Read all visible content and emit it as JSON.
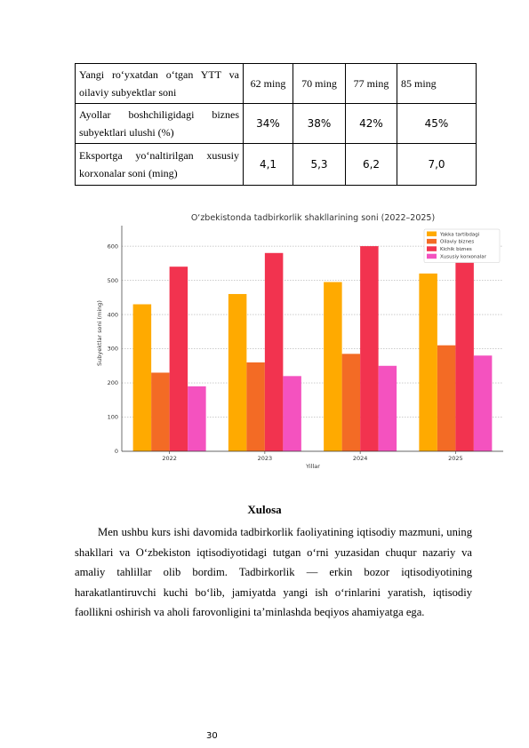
{
  "table": {
    "rows": [
      {
        "label": "Yangi ro‘yxatdan o‘tgan YTT va oilaviy subyektlar soni",
        "values": [
          "62 ming",
          "70 ming",
          "77 ming",
          "85 ming"
        ]
      },
      {
        "label": "Ayollar boshchiligidagi biznes subyektlari ulushi (%)",
        "values": [
          "34%",
          "38%",
          "42%",
          "45%"
        ]
      },
      {
        "label": "Eksportga yo‘naltirilgan xususiy korxonalar soni (ming)",
        "values": [
          "4,1",
          "5,3",
          "6,2",
          "7,0"
        ]
      }
    ]
  },
  "chart_data": {
    "type": "bar",
    "title": "O‘zbekistonda tadbirkorlik shakllarining soni (2022–2025)",
    "xlabel": "Yillar",
    "ylabel": "Subyektlar soni (ming)",
    "categories": [
      "2022",
      "2023",
      "2024",
      "2025"
    ],
    "ylim": [
      0,
      660
    ],
    "yticks": [
      "0",
      "100",
      "200",
      "300",
      "400",
      "500",
      "600"
    ],
    "grid": true,
    "legend_position": "top-right",
    "series": [
      {
        "name": "Yakka tartibdagi",
        "color": "#ffaa00",
        "values": [
          430,
          460,
          495,
          520
        ]
      },
      {
        "name": "Oilaviy biznes",
        "color": "#f36b25",
        "values": [
          230,
          260,
          285,
          310
        ]
      },
      {
        "name": "Kichik biznes",
        "color": "#f2334f",
        "values": [
          540,
          580,
          600,
          620
        ]
      },
      {
        "name": "Xususiy korxonalar",
        "color": "#f452bf",
        "values": [
          190,
          220,
          250,
          280
        ]
      }
    ]
  },
  "conclusion": {
    "heading": "Xulosa",
    "paragraph": "Men ushbu kurs ishi davomida tadbirkorlik faoliyatining iqtisodiy mazmuni, uning shakllari va O‘zbekiston iqtisodiyotidagi tutgan o‘rni yuzasidan chuqur nazariy va amaliy tahlillar olib bordim. Tadbirkorlik — erkin bozor iqtisodiyotining harakatlantiruvchi kuchi bo‘lib, jamiyatda yangi ish o‘rinlarini yaratish, iqtisodiy faollikni oshirish va aholi farovonligini ta’minlashda beqiyos ahamiyatga ega."
  },
  "page": {
    "number": "30"
  }
}
